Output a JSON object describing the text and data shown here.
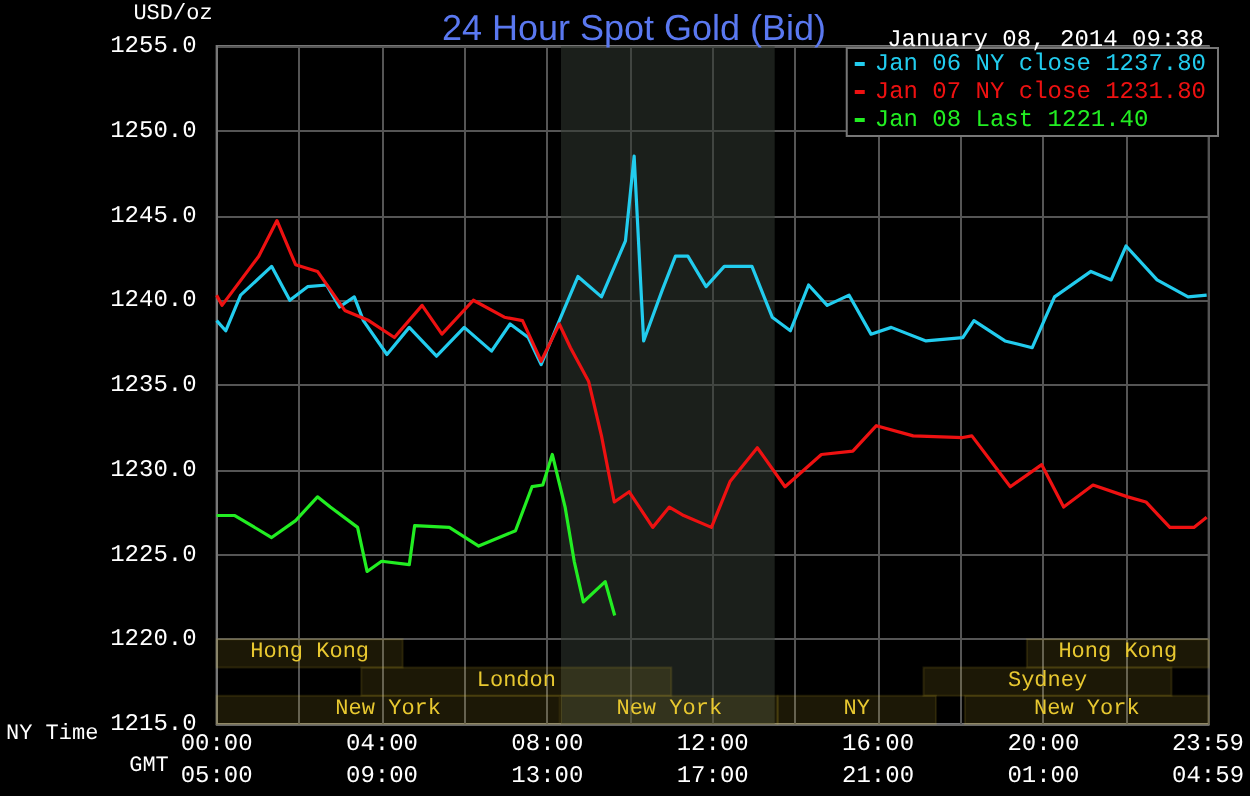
{
  "chart_data": {
    "type": "line",
    "title": "24 Hour Spot Gold (Bid)",
    "subtitle": "January 08, 2014 09:38",
    "ylabel": "USD/oz",
    "xlabel": "NY Time",
    "x2label": "GMT",
    "xlim": [
      0,
      24
    ],
    "ylim": [
      1215,
      1255
    ],
    "xticks": [
      {
        "value": 0,
        "label": "00:00"
      },
      {
        "value": 2,
        "label": null
      },
      {
        "value": 4,
        "label": "04:00"
      },
      {
        "value": 6,
        "label": null
      },
      {
        "value": 8,
        "label": "08:00"
      },
      {
        "value": 10,
        "label": null
      },
      {
        "value": 12,
        "label": "12:00"
      },
      {
        "value": 14,
        "label": null
      },
      {
        "value": 16,
        "label": "16:00"
      },
      {
        "value": 18,
        "label": null
      },
      {
        "value": 20,
        "label": "20:00"
      },
      {
        "value": 22,
        "label": null
      },
      {
        "value": 23.98,
        "label": "23:59"
      }
    ],
    "x2lim": [
      "2014-01-08T05:00",
      "2014-01-09T05:00"
    ],
    "x2ticks": [
      {
        "value": "2014-01-08T05:00",
        "label": "05:00"
      },
      {
        "value": "2014-01-08T09:00",
        "label": "09:00"
      },
      {
        "value": "2014-01-08T13:00",
        "label": "13:00"
      },
      {
        "value": "2014-01-08T17:00",
        "label": "17:00"
      },
      {
        "value": "2014-01-08T21:00",
        "label": "21:00"
      },
      {
        "value": "2014-01-09T01:00",
        "label": "01:00"
      },
      {
        "value": "2014-01-09T04:59",
        "label": "04:59"
      }
    ],
    "yticks": [
      {
        "value": 1215,
        "label": "1215.0"
      },
      {
        "value": 1220,
        "label": "1220.0"
      },
      {
        "value": 1225,
        "label": "1225.0"
      },
      {
        "value": 1230,
        "label": "1230.0"
      },
      {
        "value": 1235,
        "label": "1235.0"
      },
      {
        "value": 1240,
        "label": "1240.0"
      },
      {
        "value": 1245,
        "label": "1245.0"
      },
      {
        "value": 1250,
        "label": "1250.0"
      },
      {
        "value": 1255,
        "label": "1255.0"
      }
    ],
    "grid": true,
    "legend": "top right",
    "marker": "none",
    "line_style": "solid",
    "bands": [
      {
        "axis": "x",
        "from": 8.33,
        "to": 13.5,
        "color": "#323832"
      },
      {
        "axis": "x",
        "from": 0,
        "to": 8.3,
        "label": "New York",
        "color": "#e8c830"
      },
      {
        "axis": "x",
        "from": 8.33,
        "to": 13.57,
        "label": "New York",
        "color": "#e8c830"
      },
      {
        "axis": "x",
        "from": 13.57,
        "to": 17.4,
        "label": "NY",
        "color": "#e8c830"
      },
      {
        "axis": "x",
        "from": 18.1,
        "to": 24,
        "label": "New York",
        "color": "#e8c830"
      },
      {
        "axis": "x",
        "from": 3.5,
        "to": 11.0,
        "label": "London",
        "color": "#e8c830"
      },
      {
        "axis": "x",
        "from": 17.1,
        "to": 23.1,
        "label": "Sydney",
        "color": "#e8c830"
      },
      {
        "axis": "x",
        "from": 0,
        "to": 4.5,
        "label": "Hong Kong",
        "color": "#e8c830"
      },
      {
        "axis": "x",
        "from": 19.6,
        "to": 24,
        "label": "Hong Kong",
        "color": "#e8c830"
      }
    ],
    "series": [
      {
        "name": "Jan 06 NY close 1237.80",
        "color": "#22ccee",
        "x": [
          0,
          0.22,
          0.58,
          1.33,
          1.77,
          2.2,
          2.66,
          2.97,
          3.33,
          3.55,
          4.12,
          4.66,
          5.32,
          5.99,
          6.65,
          7.1,
          7.54,
          7.85,
          8.29,
          8.74,
          9.31,
          9.89,
          10.1,
          10.33,
          10.78,
          11.1,
          11.4,
          11.84,
          12.28,
          12.95,
          13.44,
          13.88,
          14.32,
          14.77,
          15.3,
          15.83,
          16.32,
          17.16,
          18.05,
          18.32,
          19.07,
          19.73,
          20.27,
          21.15,
          21.64,
          22.0,
          22.75,
          23.5,
          23.95
        ],
        "values": [
          1238.8,
          1238.2,
          1240.3,
          1242.0,
          1240.0,
          1240.8,
          1240.9,
          1239.6,
          1240.2,
          1238.8,
          1236.8,
          1238.4,
          1236.7,
          1238.4,
          1237.0,
          1238.6,
          1237.8,
          1236.2,
          1238.8,
          1241.4,
          1240.2,
          1243.5,
          1248.5,
          1237.6,
          1240.6,
          1242.6,
          1242.6,
          1240.8,
          1242.0,
          1242.0,
          1239.0,
          1238.2,
          1240.9,
          1239.7,
          1240.3,
          1238.0,
          1238.4,
          1237.6,
          1237.8,
          1238.8,
          1237.6,
          1237.2,
          1240.2,
          1241.7,
          1241.2,
          1243.2,
          1241.2,
          1240.2,
          1240.3
        ]
      },
      {
        "name": "Jan 07 NY close 1231.80",
        "color": "#ee1111",
        "x": [
          0,
          0.13,
          1.02,
          1.46,
          1.91,
          2.44,
          3.1,
          3.68,
          4.3,
          4.97,
          5.45,
          6.21,
          6.96,
          7.4,
          7.85,
          8.29,
          8.56,
          9.0,
          9.31,
          9.62,
          9.98,
          10.55,
          10.95,
          11.3,
          11.97,
          12.42,
          13.08,
          13.75,
          14.63,
          15.39,
          15.96,
          16.85,
          18.05,
          18.27,
          19.2,
          19.96,
          20.49,
          21.2,
          22.04,
          22.48,
          23.06,
          23.64,
          23.95
        ],
        "values": [
          1240.3,
          1239.7,
          1242.6,
          1244.7,
          1242.1,
          1241.7,
          1239.4,
          1238.8,
          1237.8,
          1239.7,
          1238.0,
          1240.0,
          1239.0,
          1238.8,
          1236.4,
          1238.6,
          1237.2,
          1235.2,
          1232.0,
          1228.1,
          1228.7,
          1226.6,
          1227.8,
          1227.3,
          1226.6,
          1229.3,
          1231.3,
          1229.0,
          1230.9,
          1231.1,
          1232.6,
          1232.0,
          1231.9,
          1232.0,
          1229.0,
          1230.3,
          1227.8,
          1229.1,
          1228.4,
          1228.1,
          1226.6,
          1226.6,
          1227.2
        ]
      },
      {
        "name": "Jan 08 Last 1221.40",
        "color": "#22ee22",
        "x": [
          0,
          0.44,
          1.33,
          1.91,
          2.44,
          2.75,
          3.41,
          3.64,
          3.99,
          4.66,
          4.79,
          5.63,
          6.34,
          7.23,
          7.63,
          7.89,
          8.12,
          8.43,
          8.65,
          8.87,
          9.4,
          9.63
        ],
        "values": [
          1227.3,
          1227.3,
          1226.0,
          1227.0,
          1228.4,
          1227.8,
          1226.6,
          1224.0,
          1224.6,
          1224.4,
          1226.7,
          1226.6,
          1225.5,
          1226.4,
          1229.0,
          1229.1,
          1230.9,
          1227.8,
          1224.6,
          1222.2,
          1223.4,
          1221.4
        ]
      }
    ]
  }
}
